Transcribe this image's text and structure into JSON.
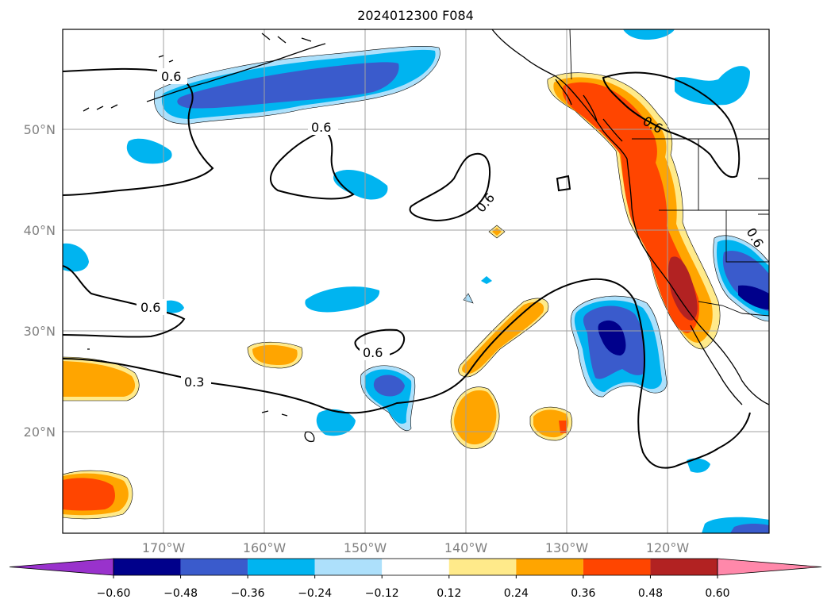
{
  "title": "2024012300 F084",
  "map": {
    "lon_range": [
      -180,
      -110
    ],
    "lat_range": [
      10,
      60
    ],
    "gridlines": true
  },
  "axes": {
    "x_ticks": [
      "170°W",
      "160°W",
      "150°W",
      "140°W",
      "130°W",
      "120°W"
    ],
    "y_ticks": [
      "50°N",
      "40°N",
      "30°N",
      "20°N"
    ]
  },
  "contours": [
    {
      "level": "0.6",
      "label": "0.6"
    },
    {
      "level": "0.3",
      "label": "0.3"
    }
  ],
  "colorbar": {
    "ticks": [
      "−0.60",
      "−0.48",
      "−0.36",
      "−0.24",
      "−0.12",
      "0.12",
      "0.24",
      "0.36",
      "0.48",
      "0.60"
    ],
    "colors": [
      "#9932cc",
      "#00008b",
      "#3a5bcc",
      "#00b4f0",
      "#ade0fb",
      "#ffffff",
      "#ffea8a",
      "#ffa500",
      "#ff4500",
      "#b22222",
      "#ff88aa"
    ]
  },
  "fill_colors": {
    "neg_1": "#ade0fb",
    "neg_2": "#00b4f0",
    "neg_3": "#3a5bcc",
    "neg_4": "#00008b",
    "pos_1": "#ffea8a",
    "pos_2": "#ffa500",
    "pos_3": "#ff4500",
    "pos_4": "#b22222"
  }
}
